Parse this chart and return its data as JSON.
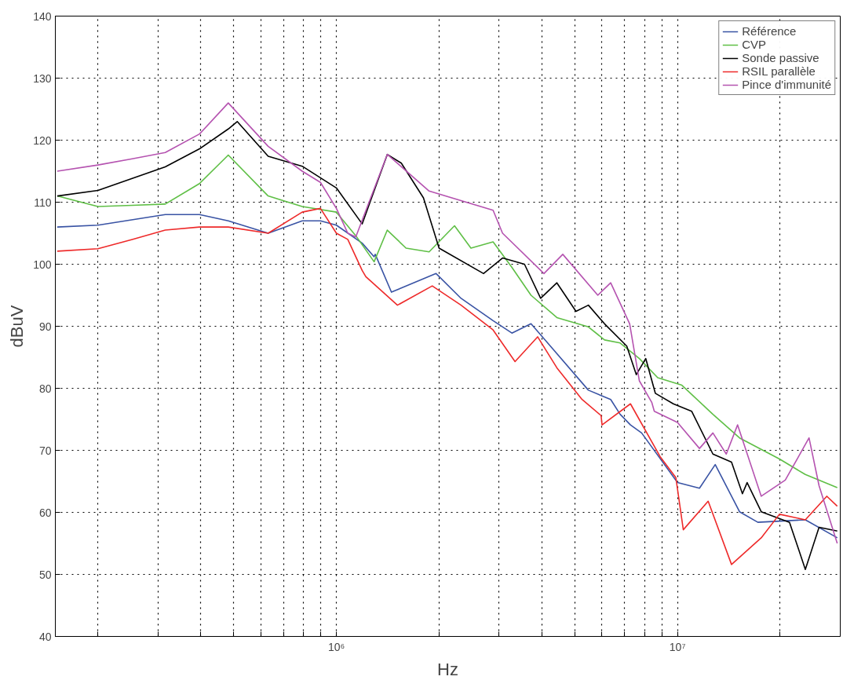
{
  "chart_data": {
    "type": "line",
    "xlabel": "Hz",
    "ylabel": "dBuV",
    "log": "x",
    "grid": true,
    "legend": "top right",
    "line_style": "solid",
    "marker": "none",
    "xlim": [
      150000,
      30000000
    ],
    "ylim": [
      40,
      140
    ],
    "xticks": [
      {
        "value": 200000,
        "label": null
      },
      {
        "value": 300000,
        "label": null
      },
      {
        "value": 400000,
        "label": null
      },
      {
        "value": 500000,
        "label": null
      },
      {
        "value": 600000,
        "label": null
      },
      {
        "value": 700000,
        "label": null
      },
      {
        "value": 800000,
        "label": null
      },
      {
        "value": 900000,
        "label": null
      },
      {
        "value": 1000000,
        "label": "10⁶"
      },
      {
        "value": 2000000,
        "label": null
      },
      {
        "value": 3000000,
        "label": null
      },
      {
        "value": 4000000,
        "label": null
      },
      {
        "value": 5000000,
        "label": null
      },
      {
        "value": 6000000,
        "label": null
      },
      {
        "value": 7000000,
        "label": null
      },
      {
        "value": 8000000,
        "label": null
      },
      {
        "value": 9000000,
        "label": null
      },
      {
        "value": 10000000,
        "label": "10⁷"
      },
      {
        "value": 20000000,
        "label": null
      }
    ],
    "yticks": [
      40,
      50,
      60,
      70,
      80,
      90,
      100,
      110,
      120,
      130,
      140
    ],
    "series": [
      {
        "name": "Référence",
        "color": "#3953a4",
        "x": [
          152000,
          200000,
          315000,
          397000,
          482000,
          631000,
          794000,
          898000,
          1000000,
          1190000,
          1290000,
          1300000,
          1450000,
          1960000,
          2320000,
          2880000,
          3270000,
          3720000,
          4240000,
          5480000,
          6370000,
          6790000,
          7280000,
          7850000,
          10000000,
          11600000,
          12900000,
          15200000,
          17200000,
          23700000,
          29400000
        ],
        "values": [
          106,
          106.3,
          108,
          108,
          107,
          105,
          107,
          107,
          106.3,
          103.4,
          101.2,
          101.6,
          95.5,
          98.5,
          94.5,
          90.9,
          88.9,
          90.4,
          86.8,
          79.7,
          78.2,
          75.8,
          74.1,
          72.8,
          64.8,
          63.9,
          67.7,
          60.1,
          58.4,
          58.8,
          55.9
        ]
      },
      {
        "name": "CVP",
        "color": "#5fbf46",
        "x": [
          152000,
          200000,
          252000,
          315000,
          397000,
          482000,
          631000,
          794000,
          1000000,
          1140000,
          1290000,
          1410000,
          1600000,
          1870000,
          2220000,
          2480000,
          2880000,
          3270000,
          3720000,
          4430000,
          5480000,
          6110000,
          6790000,
          7730000,
          8750000,
          10300000,
          12700000,
          15200000,
          19900000,
          23700000,
          29400000
        ],
        "values": [
          111,
          109.3,
          109.5,
          109.7,
          113,
          117.6,
          111,
          109.3,
          108.4,
          104.6,
          100.4,
          105.5,
          102.6,
          102,
          106.2,
          102.6,
          103.6,
          99.5,
          95,
          91.4,
          89.9,
          87.8,
          87.3,
          84.8,
          81.7,
          80.5,
          75.8,
          72,
          68.6,
          66.1,
          64
        ]
      },
      {
        "name": "Sonde passive",
        "color": "#000000",
        "x": [
          152000,
          200000,
          315000,
          397000,
          482000,
          512000,
          631000,
          794000,
          1000000,
          1190000,
          1410000,
          1550000,
          1800000,
          2000000,
          2700000,
          3070000,
          3560000,
          3970000,
          4430000,
          5040000,
          5480000,
          6110000,
          7100000,
          7570000,
          8070000,
          8610000,
          9720000,
          11000000,
          12700000,
          14400000,
          15500000,
          16000000,
          17600000,
          21300000,
          23700000,
          26000000,
          29400000
        ],
        "values": [
          111,
          111.9,
          115.7,
          118.6,
          121.8,
          123,
          117.4,
          115.8,
          112.3,
          106.5,
          117.7,
          116.3,
          110.7,
          102.6,
          98.5,
          101,
          100,
          94.5,
          97,
          92.4,
          93.4,
          90.4,
          86.8,
          82.2,
          84.8,
          79.2,
          77.5,
          76.3,
          69.4,
          68.1,
          63,
          64.8,
          60.1,
          58.4,
          50.8,
          57.6,
          57
        ]
      },
      {
        "name": "RSIL parallèle",
        "color": "#ee2a2a",
        "x": [
          152000,
          200000,
          252000,
          315000,
          397000,
          482000,
          631000,
          794000,
          898000,
          1000000,
          1080000,
          1190000,
          1220000,
          1510000,
          1910000,
          2320000,
          2880000,
          3340000,
          3890000,
          4430000,
          5250000,
          5970000,
          6010000,
          7280000,
          8890000,
          9890000,
          10400000,
          12300000,
          14400000,
          17600000,
          19900000,
          23700000,
          27400000,
          29400000
        ],
        "values": [
          102.1,
          102.5,
          104,
          105.5,
          106,
          106,
          105,
          108.4,
          109,
          105,
          104,
          99,
          98,
          93.4,
          96.5,
          93.4,
          89.4,
          84.3,
          88.3,
          83.3,
          78.2,
          75.6,
          74.1,
          77.5,
          69,
          65.6,
          57.2,
          61.8,
          51.6,
          55.9,
          59.7,
          58.8,
          62.6,
          61
        ]
      },
      {
        "name": "Pince d'immunité",
        "color": "#b553b0",
        "x": [
          152000,
          200000,
          252000,
          315000,
          397000,
          482000,
          631000,
          794000,
          898000,
          1000000,
          1080000,
          1140000,
          1410000,
          1870000,
          2880000,
          3070000,
          4060000,
          4610000,
          5840000,
          6370000,
          7240000,
          7730000,
          8410000,
          8550000,
          10000000,
          11600000,
          12700000,
          13900000,
          15000000,
          17600000,
          20700000,
          24300000,
          26000000,
          29400000
        ],
        "values": [
          115,
          116,
          117,
          118,
          121,
          126,
          119,
          115,
          113.2,
          109,
          105,
          104.4,
          117.7,
          111.8,
          108.7,
          105,
          98.5,
          101.6,
          95,
          97,
          90.4,
          81.2,
          77.7,
          76.3,
          74.5,
          70.3,
          72.8,
          69.4,
          74.1,
          62.6,
          65.2,
          72,
          64.3,
          55
        ]
      }
    ]
  }
}
